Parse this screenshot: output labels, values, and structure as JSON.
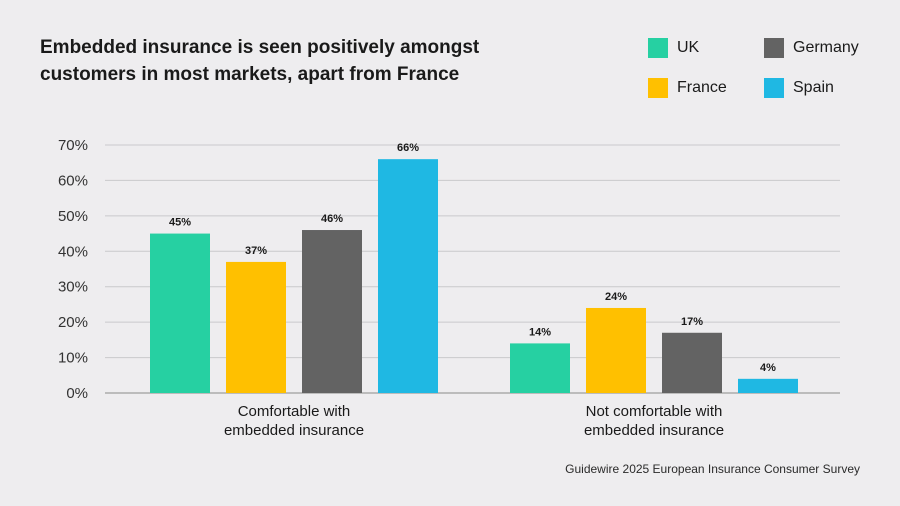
{
  "chart_data": {
    "type": "bar",
    "title": "Embedded insurance is seen positively amongst customers in most markets, apart from France",
    "categories": [
      "Comfortable with\nembedded insurance",
      "Not comfortable with\nembedded insurance"
    ],
    "series": [
      {
        "name": "UK",
        "color": "#26d0a2",
        "values": [
          45,
          14
        ]
      },
      {
        "name": "France",
        "color": "#ffc000",
        "values": [
          37,
          24
        ]
      },
      {
        "name": "Germany",
        "color": "#636363",
        "values": [
          46,
          17
        ]
      },
      {
        "name": "Spain",
        "color": "#1fb8e3",
        "values": [
          66,
          4
        ]
      }
    ],
    "yticks": [
      0,
      10,
      20,
      30,
      40,
      50,
      60,
      70
    ],
    "ylim": [
      0,
      70
    ],
    "value_suffix": "%",
    "xlabel": "",
    "ylabel": "",
    "grid": true,
    "legend_position": "top-right"
  },
  "source": "Guidewire 2025 European Insurance Consumer Survey"
}
